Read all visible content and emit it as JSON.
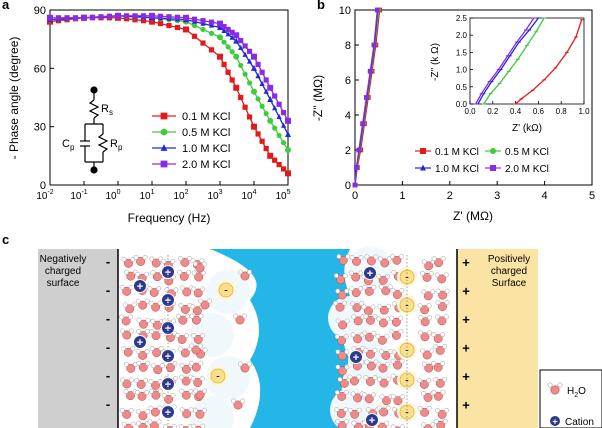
{
  "panel_labels": {
    "a": "a",
    "b": "b",
    "c": "c"
  },
  "colors": {
    "red": "#e31a1c",
    "green": "#3ccc3c",
    "blue": "#1f2ad6",
    "purple": "#8a2be2",
    "water_blue": "#23b6e6",
    "gray_surface": "#cfcfcf",
    "yellow_surface": "#fbe3a3"
  },
  "chart_data": [
    {
      "type": "line",
      "panel": "a",
      "xscale": "log",
      "xlabel": "Frequency (Hz)",
      "ylabel": "- Phase angle (degree)",
      "xlim": [
        0.01,
        100000
      ],
      "ylim": [
        0,
        90
      ],
      "xticks": [
        0.01,
        0.1,
        1,
        10,
        100,
        1000,
        10000,
        100000
      ],
      "xtick_labels": [
        {
          "base": "10",
          "exp": "-2"
        },
        {
          "base": "10",
          "exp": "-1"
        },
        {
          "base": "10",
          "exp": "0"
        },
        {
          "base": "10",
          "exp": "1"
        },
        {
          "base": "10",
          "exp": "2"
        },
        {
          "base": "10",
          "exp": "3"
        },
        {
          "base": "10",
          "exp": "4"
        },
        {
          "base": "10",
          "exp": "5"
        }
      ],
      "yticks": [
        0,
        30,
        60,
        90
      ],
      "ytick_labels": [
        "0",
        "30",
        "60",
        "90"
      ],
      "x": [
        0.01,
        0.1,
        1,
        10,
        100,
        1000,
        3000,
        10000,
        30000,
        100000
      ],
      "series": [
        {
          "name": "0.1 M KCl",
          "color": "#e31a1c",
          "marker": "square",
          "values": [
            84,
            86,
            86,
            84,
            80,
            66,
            50,
            30,
            15,
            6
          ]
        },
        {
          "name": "0.5 M KCl",
          "color": "#3ccc3c",
          "marker": "circle",
          "values": [
            85,
            86,
            87,
            86,
            84,
            76,
            66,
            48,
            33,
            18
          ]
        },
        {
          "name": "1.0 M KCl",
          "color": "#1f2ad6",
          "marker": "triangle",
          "values": [
            85,
            86,
            87,
            86,
            85,
            81,
            74,
            60,
            44,
            26
          ]
        },
        {
          "name": "2.0 M KCl",
          "color": "#8a2be2",
          "marker": "square",
          "values": [
            86,
            86,
            87,
            87,
            86,
            83,
            77,
            66,
            50,
            33
          ]
        }
      ],
      "inset_circuit": {
        "labels": [
          "R",
          "s",
          "C",
          "p",
          "R",
          "p"
        ]
      }
    },
    {
      "type": "line",
      "panel": "b",
      "xlabel": "Z' (MΩ)",
      "ylabel": "-Z'' (MΩ)",
      "xlim": [
        0,
        5
      ],
      "ylim": [
        0,
        10
      ],
      "xticks": [
        0,
        1,
        2,
        3,
        4,
        5
      ],
      "xtick_labels": [
        "0",
        "1",
        "2",
        "3",
        "4",
        "5"
      ],
      "yticks": [
        0,
        2,
        4,
        6,
        8,
        10
      ],
      "ytick_labels": [
        "0",
        "2",
        "4",
        "6",
        "8",
        "10"
      ],
      "series": [
        {
          "name": "0.1 M KCl",
          "color": "#e31a1c",
          "marker": "square",
          "x": [
            0.0,
            0.05,
            0.12,
            0.2,
            0.28,
            0.36,
            0.44,
            0.52
          ],
          "y": [
            0,
            1,
            2,
            3.5,
            5,
            6.5,
            8,
            10
          ]
        },
        {
          "name": "0.5 M KCl",
          "color": "#3ccc3c",
          "marker": "circle",
          "x": [
            0.0,
            0.04,
            0.1,
            0.18,
            0.26,
            0.34,
            0.42,
            0.5
          ],
          "y": [
            0,
            1,
            2,
            3.5,
            5,
            6.5,
            8,
            10
          ]
        },
        {
          "name": "1.0 M KCl",
          "color": "#1f2ad6",
          "marker": "triangle",
          "x": [
            0.0,
            0.03,
            0.09,
            0.17,
            0.25,
            0.33,
            0.41,
            0.48
          ],
          "y": [
            0,
            1,
            2,
            3.5,
            5,
            6.5,
            8,
            10
          ]
        },
        {
          "name": "2.0 M KCl",
          "color": "#8a2be2",
          "marker": "square",
          "x": [
            0.0,
            0.03,
            0.08,
            0.16,
            0.24,
            0.32,
            0.4,
            0.47
          ],
          "y": [
            0,
            1,
            2,
            3.5,
            5,
            6.5,
            8,
            10
          ]
        }
      ],
      "inset": {
        "xlabel": "Z' (kΩ)",
        "ylabel": "-Z'' (k Ω)",
        "xlim": [
          0,
          1.0
        ],
        "ylim": [
          0,
          2.5
        ],
        "xticks": [
          0,
          0.2,
          0.4,
          0.6,
          0.8,
          1.0
        ],
        "xtick_labels": [
          "0.0",
          "0.2",
          "0.4",
          "0.6",
          "0.8",
          "1.0"
        ],
        "yticks": [
          0,
          0.5,
          1.0,
          1.5,
          2.0,
          2.5
        ],
        "ytick_labels": [
          "0.0",
          "0.5",
          "1.0",
          "1.5",
          "2.0",
          "2.5"
        ],
        "series": [
          {
            "name": "0.1 M KCl",
            "color": "#e31a1c",
            "x": [
              0.4,
              0.45,
              0.55,
              0.65,
              0.75,
              0.85,
              0.93,
              0.98
            ],
            "y": [
              0,
              0.15,
              0.4,
              0.7,
              1.05,
              1.5,
              1.95,
              2.45
            ]
          },
          {
            "name": "0.5 M KCl",
            "color": "#3ccc3c",
            "x": [
              0.12,
              0.18,
              0.26,
              0.34,
              0.42,
              0.5,
              0.58,
              0.65
            ],
            "y": [
              0,
              0.3,
              0.6,
              0.95,
              1.3,
              1.7,
              2.1,
              2.5
            ]
          },
          {
            "name": "1.0 M KCl",
            "color": "#1f2ad6",
            "x": [
              0.07,
              0.12,
              0.19,
              0.27,
              0.35,
              0.43,
              0.52,
              0.6
            ],
            "y": [
              0,
              0.3,
              0.65,
              1.0,
              1.4,
              1.8,
              2.15,
              2.5
            ]
          },
          {
            "name": "2.0 M KCl",
            "color": "#8a2be2",
            "x": [
              0.05,
              0.1,
              0.17,
              0.25,
              0.33,
              0.41,
              0.49,
              0.56
            ],
            "y": [
              0,
              0.3,
              0.65,
              1.0,
              1.4,
              1.8,
              2.15,
              2.5
            ]
          }
        ]
      }
    }
  ],
  "diagram": {
    "left_surface": "Negatively charged surface",
    "right_surface": "Positively charged Surface",
    "minus": "-",
    "plus": "+",
    "cation_symbol": "+",
    "anion_symbol": "-",
    "legend": [
      {
        "name": "H2O",
        "label_main": "H",
        "label_sub": "2",
        "label_tail": "O"
      },
      {
        "name": "Cation",
        "label": "Cation"
      }
    ]
  }
}
